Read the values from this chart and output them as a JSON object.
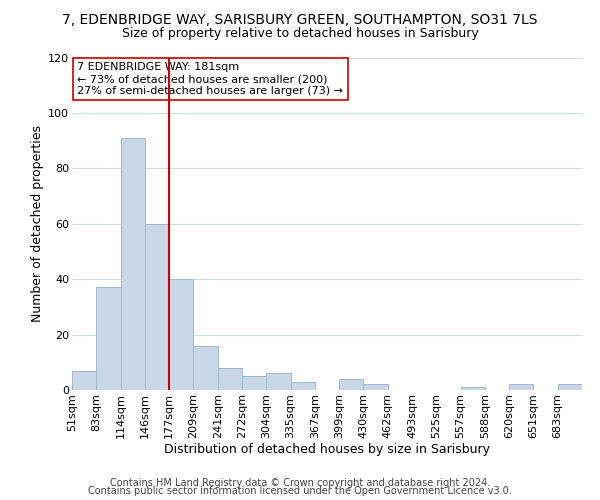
{
  "title": "7, EDENBRIDGE WAY, SARISBURY GREEN, SOUTHAMPTON, SO31 7LS",
  "subtitle": "Size of property relative to detached houses in Sarisbury",
  "xlabel": "Distribution of detached houses by size in Sarisbury",
  "ylabel": "Number of detached properties",
  "bar_labels": [
    "51sqm",
    "83sqm",
    "114sqm",
    "146sqm",
    "177sqm",
    "209sqm",
    "241sqm",
    "272sqm",
    "304sqm",
    "335sqm",
    "367sqm",
    "399sqm",
    "430sqm",
    "462sqm",
    "493sqm",
    "525sqm",
    "557sqm",
    "588sqm",
    "620sqm",
    "651sqm",
    "683sqm"
  ],
  "bar_values": [
    7,
    37,
    91,
    60,
    40,
    16,
    8,
    5,
    6,
    3,
    0,
    4,
    2,
    0,
    0,
    0,
    1,
    0,
    2,
    0,
    2
  ],
  "bar_color": "#c8d8e8",
  "bar_edge_color": "#a0b8cc",
  "vline_x_idx": 4,
  "vline_color": "#cc0000",
  "annotation_title": "7 EDENBRIDGE WAY: 181sqm",
  "annotation_line1": "← 73% of detached houses are smaller (200)",
  "annotation_line2": "27% of semi-detached houses are larger (73) →",
  "annotation_box_color": "#ffffff",
  "annotation_box_edge": "#cc0000",
  "ylim": [
    0,
    120
  ],
  "yticks": [
    0,
    20,
    40,
    60,
    80,
    100,
    120
  ],
  "footer1": "Contains HM Land Registry data © Crown copyright and database right 2024.",
  "footer2": "Contains public sector information licensed under the Open Government Licence v3.0.",
  "title_fontsize": 10,
  "subtitle_fontsize": 9,
  "axis_label_fontsize": 9,
  "tick_fontsize": 8,
  "annotation_fontsize": 8,
  "footer_fontsize": 7
}
